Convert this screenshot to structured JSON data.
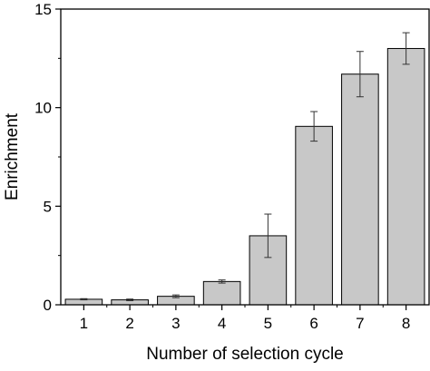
{
  "chart_data": {
    "type": "bar",
    "title": "",
    "xlabel": "Number of selection cycle",
    "ylabel": "Enrichment",
    "categories": [
      "1",
      "2",
      "3",
      "4",
      "5",
      "6",
      "7",
      "8"
    ],
    "values": [
      0.28,
      0.25,
      0.43,
      1.18,
      3.5,
      9.05,
      11.7,
      13.0
    ],
    "errors": [
      0.03,
      0.04,
      0.07,
      0.08,
      1.1,
      0.75,
      1.15,
      0.8
    ],
    "ylim": [
      0,
      15
    ],
    "yticks": [
      0,
      5,
      10,
      15
    ],
    "grid": false,
    "colors": {
      "bar": "#c8c8c8",
      "outline": "#000000"
    }
  }
}
